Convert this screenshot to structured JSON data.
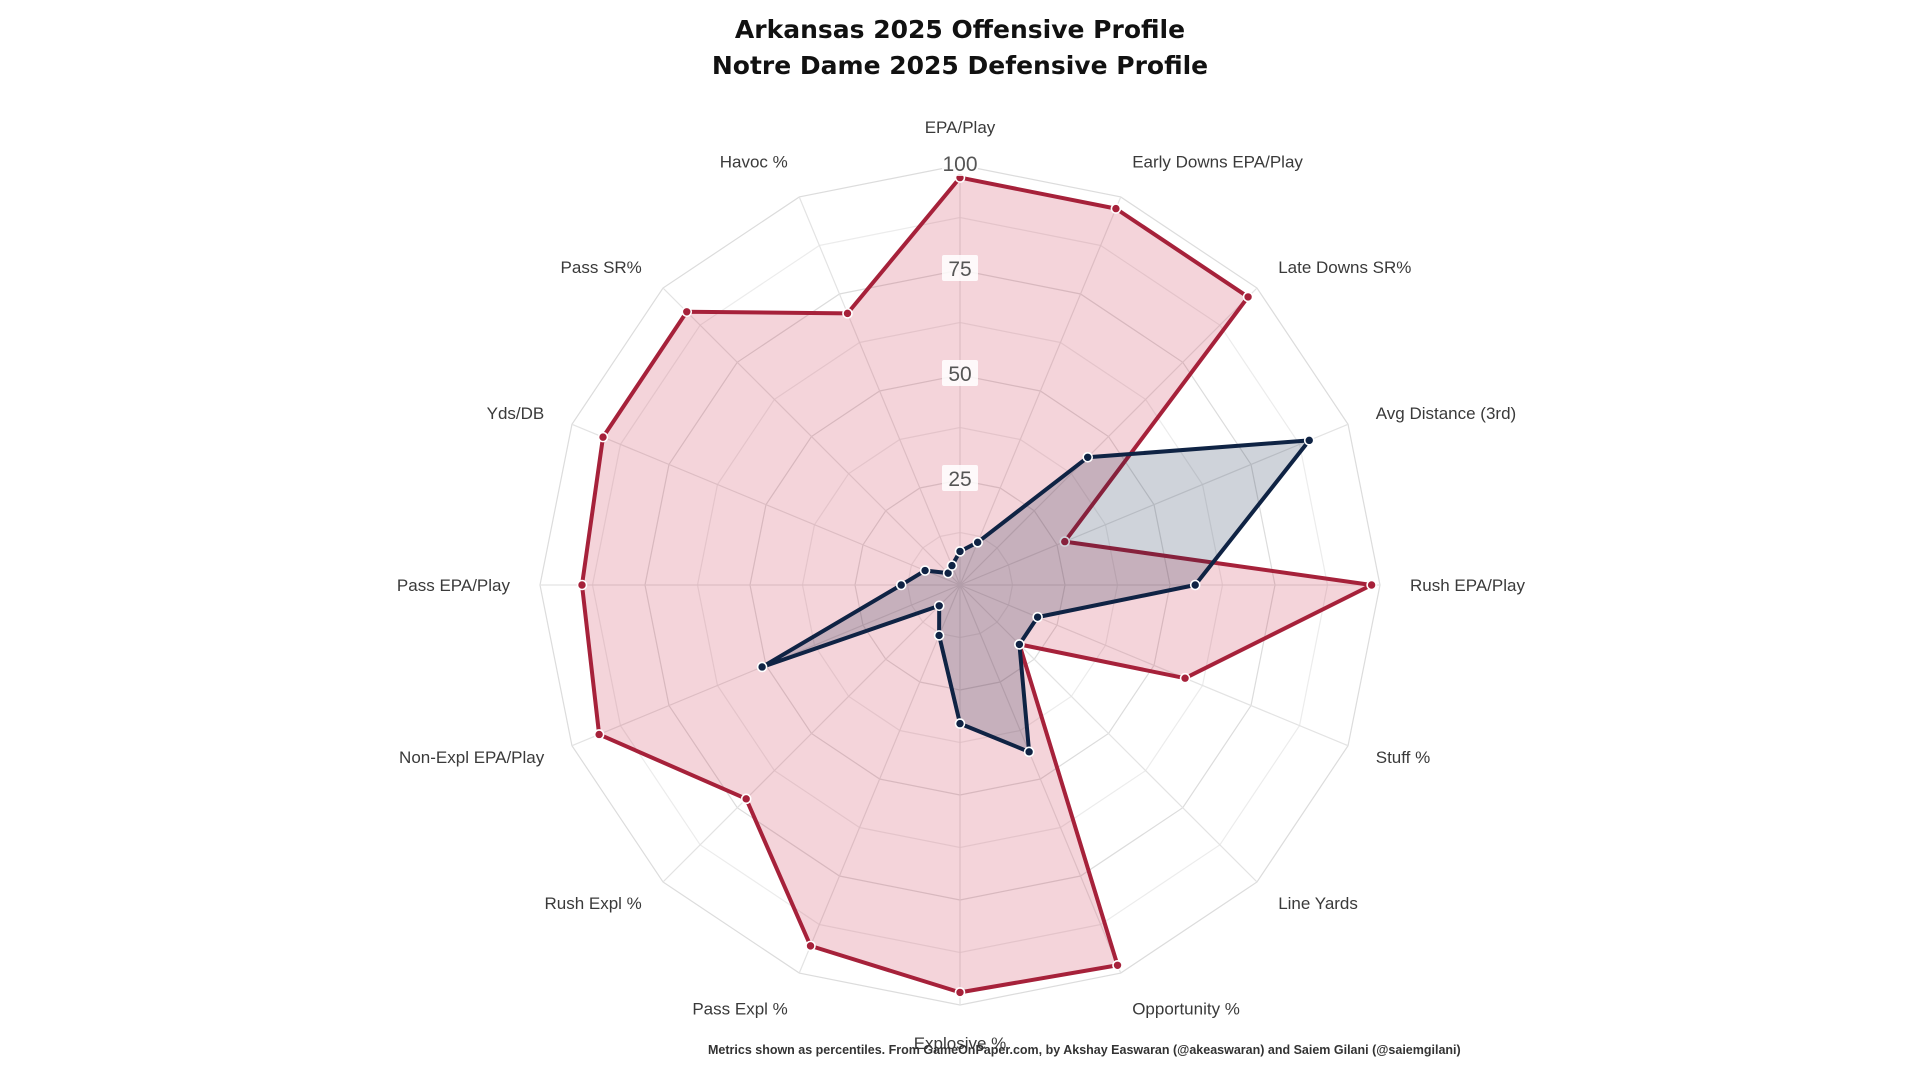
{
  "chart_data": {
    "type": "radar",
    "title": [
      "Arkansas 2025 Offensive Profile",
      "Notre Dame 2025 Defensive Profile"
    ],
    "axes": [
      "EPA/Play",
      "Early Downs EPA/Play",
      "Late Downs SR%",
      "Avg Distance (3rd)",
      "Rush EPA/Play",
      "Stuff %",
      "Line Yards",
      "Opportunity %",
      "Explosive %",
      "Pass Expl %",
      "Rush Expl %",
      "Non-Expl EPA/Play",
      "Pass EPA/Play",
      "Yds/DB",
      "Pass SR%",
      "Havoc %"
    ],
    "rlim": [
      0,
      100
    ],
    "ticks": [
      "25",
      "50",
      "75",
      "100"
    ],
    "tick_values": [
      25,
      50,
      75,
      100
    ],
    "grid": true,
    "series": [
      {
        "team": "Arkansas",
        "color": "#a6213a",
        "fill": "rgba(200, 40, 70, 0.2)",
        "values": [
          97,
          97,
          97,
          27,
          98,
          58,
          20,
          98,
          97,
          93,
          72,
          93,
          90,
          92,
          92,
          70
        ]
      },
      {
        "team": "Notre Dame",
        "color": "#0f2344",
        "fill": "rgba(15, 35, 68, 0.2)",
        "values": [
          8,
          11,
          43,
          90,
          56,
          20,
          20,
          43,
          33,
          13,
          7,
          51,
          14,
          9,
          4,
          5
        ]
      }
    ]
  },
  "footer": "Metrics shown as percentiles. From GameOnPaper.com, by Akshay Easwaran (@akeaswaran) and Saiem Gilani (@saiemgilani)"
}
